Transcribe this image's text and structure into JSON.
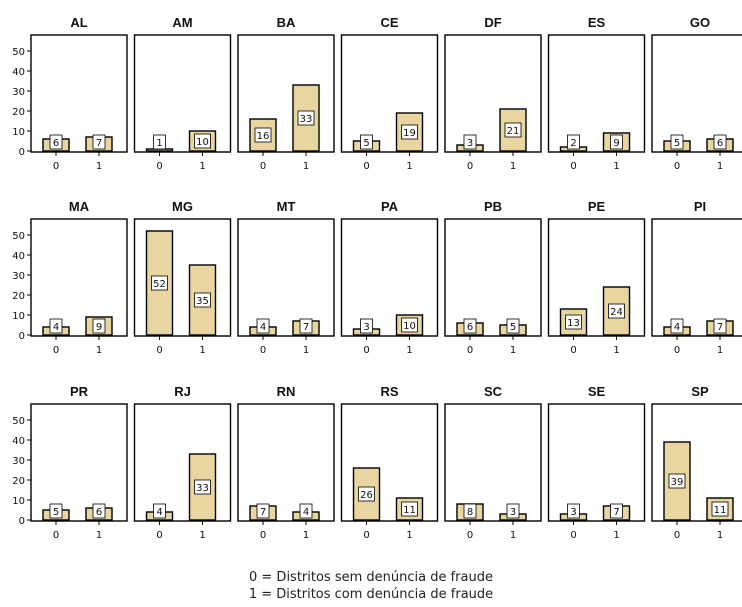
{
  "chart_data": {
    "type": "bar",
    "layout": "small-multiples",
    "categories": [
      "0",
      "1"
    ],
    "yticks": [
      0,
      10,
      20,
      30,
      40,
      50
    ],
    "ylim": [
      0,
      57
    ],
    "bar_color": "#e8d5a0",
    "bar_edge_color": "#000000",
    "panels": [
      {
        "title": "AL",
        "values": [
          6,
          7
        ]
      },
      {
        "title": "AM",
        "values": [
          1,
          10
        ]
      },
      {
        "title": "BA",
        "values": [
          16,
          33
        ]
      },
      {
        "title": "CE",
        "values": [
          5,
          19
        ]
      },
      {
        "title": "DF",
        "values": [
          3,
          21
        ]
      },
      {
        "title": "ES",
        "values": [
          2,
          9
        ]
      },
      {
        "title": "GO",
        "values": [
          5,
          6
        ]
      },
      {
        "title": "MA",
        "values": [
          4,
          9
        ]
      },
      {
        "title": "MG",
        "values": [
          52,
          35
        ]
      },
      {
        "title": "MT",
        "values": [
          4,
          7
        ]
      },
      {
        "title": "PA",
        "values": [
          3,
          10
        ]
      },
      {
        "title": "PB",
        "values": [
          6,
          5
        ]
      },
      {
        "title": "PE",
        "values": [
          13,
          24
        ]
      },
      {
        "title": "PI",
        "values": [
          4,
          7
        ]
      },
      {
        "title": "PR",
        "values": [
          5,
          6
        ]
      },
      {
        "title": "RJ",
        "values": [
          4,
          33
        ]
      },
      {
        "title": "RN",
        "values": [
          7,
          4
        ]
      },
      {
        "title": "RS",
        "values": [
          26,
          11
        ]
      },
      {
        "title": "SC",
        "values": [
          8,
          3
        ]
      },
      {
        "title": "SE",
        "values": [
          3,
          7
        ]
      },
      {
        "title": "SP",
        "values": [
          39,
          11
        ]
      }
    ]
  },
  "legend": {
    "line0": "0 = Distritos sem denúncia de fraude",
    "line1": "1 = Distritos com denúncia de fraude"
  }
}
